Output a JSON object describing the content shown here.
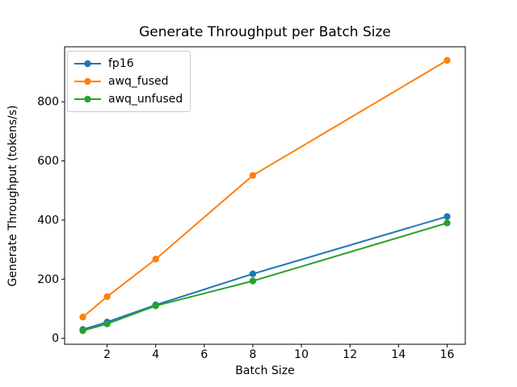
{
  "figure": {
    "background": "#ffffff",
    "spine_color": "#000000"
  },
  "chart_data": {
    "type": "line",
    "title": "Generate Throughput per Batch Size",
    "xlabel": "Batch Size",
    "ylabel": "Generate Throughput (tokens/s)",
    "x": [
      1,
      2,
      4,
      8,
      16
    ],
    "series": [
      {
        "name": "fp16",
        "color": "#1f77b4",
        "values": [
          30,
          55,
          113,
          218,
          412
        ]
      },
      {
        "name": "awq_fused",
        "color": "#ff7f0e",
        "values": [
          72,
          141,
          268,
          551,
          940
        ]
      },
      {
        "name": "awq_unfused",
        "color": "#2ca02c",
        "values": [
          26,
          49,
          110,
          194,
          390
        ]
      }
    ],
    "marker": "o",
    "xticks": [
      2,
      4,
      6,
      8,
      10,
      12,
      14,
      16
    ],
    "yticks": [
      0,
      200,
      400,
      600,
      800
    ],
    "xlim": [
      0.25,
      16.75
    ],
    "ylim": [
      -20,
      986
    ],
    "grid": false,
    "legend_position": "upper left"
  }
}
